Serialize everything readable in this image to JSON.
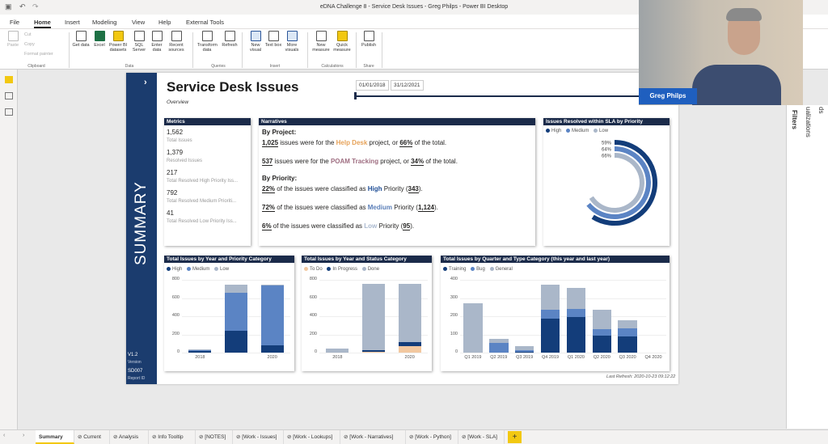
{
  "app": {
    "window_title": "eDNA Challenge 8 - Service Desk Issues - Greg Philps - Power BI Desktop",
    "ribbon_tabs": [
      "File",
      "Home",
      "Insert",
      "Modeling",
      "View",
      "Help",
      "External Tools"
    ],
    "active_tab": "Home",
    "clipboard": {
      "paste": "Paste",
      "cut": "Cut",
      "copy": "Copy",
      "format_painter": "Format painter",
      "group": "Clipboard"
    },
    "data_buttons": [
      "Get data",
      "Excel",
      "Power BI datasets",
      "SQL Server",
      "Enter data",
      "Recent sources"
    ],
    "data_group": "Data",
    "queries_buttons": [
      "Transform data",
      "Refresh"
    ],
    "queries_group": "Queries",
    "insert_buttons": [
      "New visual",
      "Text box",
      "More visuals"
    ],
    "insert_group": "Insert",
    "calc_buttons": [
      "New measure",
      "Quick measure"
    ],
    "calc_group": "Calculations",
    "share_buttons": [
      "Publish"
    ],
    "share_group": "Share",
    "right_panes": [
      "Filters",
      "ualizations",
      "ds"
    ],
    "presenter_name": "Greg Philps"
  },
  "report": {
    "title": "Service Desk Issues",
    "subtitle": "Overview",
    "date_start": "01/01/2018",
    "date_end": "31/12/2021",
    "side_label": "SUMMARY",
    "version_value": "V1.2",
    "version_label": "Version",
    "report_id_value": "SD007",
    "report_id_label": "Report ID",
    "last_refresh": "Last Refresh: 2020-10-23 09:12:22",
    "metrics": {
      "header": "Metrics",
      "items": [
        {
          "value": "1,562",
          "label": "Total Issues"
        },
        {
          "value": "1,379",
          "label": "Resolved Issues"
        },
        {
          "value": "217",
          "label": "Total Resolved High Priority Iss..."
        },
        {
          "value": "792",
          "label": "Total Resolved Medium Prioriti..."
        },
        {
          "value": "41",
          "label": "Total Resolved Low Priority Iss..."
        }
      ]
    },
    "narratives": {
      "header": "Narratives",
      "by_project": "By Project:",
      "p1_num": "1,025",
      "p1_a": " issues were for the ",
      "p1_proj": "Help Desk",
      "p1_b": " project, or ",
      "p1_pct": "66%",
      "p1_c": " of the total.",
      "p2_num": "537",
      "p2_a": " issues were for the ",
      "p2_proj": "POAM Tracking",
      "p2_b": " project, or ",
      "p2_pct": "34%",
      "p2_c": " of the total.",
      "by_priority": "By Priority:",
      "r1_pct": "22%",
      "r1_a": " of the issues were classified as ",
      "r1_pri": "High",
      "r1_b": " Priority (",
      "r1_num": "343",
      "r1_c": ").",
      "r2_pct": "72%",
      "r2_a": " of the issues were classified as ",
      "r2_pri": "Medium",
      "r2_b": " Priority (",
      "r2_num": "1,124",
      "r2_c": ").",
      "r3_pct": "6%",
      "r3_a": " of the issues were classified as ",
      "r3_pri": "Low",
      "r3_b": " Priority (",
      "r3_num": "95",
      "r3_c": ")."
    },
    "colors": {
      "navy": "#133d7a",
      "mid": "#5b84c4",
      "light": "#aab7c9",
      "orange": "#f2c8a0"
    }
  },
  "chart_data": [
    {
      "type": "pie",
      "title": "Issues Resolved within SLA by Priority",
      "legend": [
        "High",
        "Medium",
        "Low"
      ],
      "categories": [
        "High",
        "Medium",
        "Low"
      ],
      "values": [
        59,
        64,
        66
      ],
      "labels": [
        "59%",
        "64%",
        "66%"
      ]
    },
    {
      "type": "bar",
      "title": "Total Issues by Year and Priority Category",
      "legend": [
        "High",
        "Medium",
        "Low"
      ],
      "categories": [
        "2018",
        "2019",
        "2020"
      ],
      "x_labels": [
        "2018",
        "2020"
      ],
      "yticks": [
        "0",
        "200",
        "400",
        "600",
        "800"
      ],
      "ylim": [
        0,
        800
      ],
      "series": [
        {
          "name": "High",
          "values": [
            18,
            240,
            80
          ]
        },
        {
          "name": "Medium",
          "values": [
            15,
            420,
            660
          ]
        },
        {
          "name": "Low",
          "values": [
            3,
            90,
            10
          ]
        }
      ]
    },
    {
      "type": "bar",
      "title": "Total Issues by Year and Status Category",
      "legend": [
        "To Do",
        "In Progress",
        "Done"
      ],
      "categories": [
        "2018",
        "2019",
        "2020"
      ],
      "x_labels": [
        "2018",
        "2020"
      ],
      "yticks": [
        "0",
        "200",
        "400",
        "600",
        "800"
      ],
      "ylim": [
        0,
        800
      ],
      "series": [
        {
          "name": "To Do",
          "values": [
            0,
            8,
            75
          ]
        },
        {
          "name": "In Progress",
          "values": [
            0,
            20,
            45
          ]
        },
        {
          "name": "Done",
          "values": [
            45,
            725,
            640
          ]
        }
      ]
    },
    {
      "type": "bar",
      "title": "Total Issues by Quarter and Type Category (this year and last year)",
      "legend": [
        "Training",
        "Bug",
        "General"
      ],
      "categories": [
        "Q1 2019",
        "Q2 2019",
        "Q3 2019",
        "Q4 2019",
        "Q1 2020",
        "Q2 2020",
        "Q3 2020",
        "Q4 2020"
      ],
      "yticks": [
        "0",
        "100",
        "200",
        "300",
        "400"
      ],
      "ylim": [
        0,
        400
      ],
      "series": [
        {
          "name": "Training",
          "values": [
            0,
            0,
            5,
            185,
            195,
            95,
            90,
            0
          ]
        },
        {
          "name": "Bug",
          "values": [
            0,
            55,
            10,
            50,
            45,
            35,
            45,
            0
          ]
        },
        {
          "name": "General",
          "values": [
            270,
            20,
            20,
            140,
            115,
            105,
            45,
            0
          ]
        }
      ]
    }
  ],
  "bottom_tabs": [
    "Summary",
    "Current",
    "Analysis",
    "Info Tooltip",
    "[NOTES]",
    "[Work - Issues]",
    "[Work - Lookups]",
    "[Work - Narratives]",
    "[Work - Python]",
    "[Work - SLA]"
  ]
}
